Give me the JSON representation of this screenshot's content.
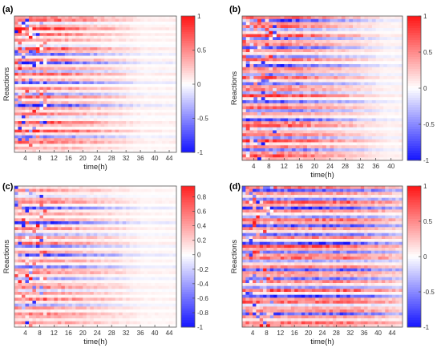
{
  "chart_data": [
    {
      "type": "heatmap",
      "panel_label": "(a)",
      "xlabel": "time(h)",
      "ylabel": "Reactions",
      "x_ticks": [
        4,
        8,
        12,
        16,
        20,
        24,
        28,
        32,
        36,
        40,
        44
      ],
      "xlim": [
        1,
        46
      ],
      "colorbar": {
        "ticks": [
          -1,
          -0.5,
          0,
          0.5,
          1
        ],
        "tick_labels": [
          "-1",
          "-0.5",
          "0",
          "0.5",
          "1"
        ],
        "range": [
          -1,
          1
        ]
      },
      "colormap": [
        "#1414ff",
        "#ffffff",
        "#ff1414"
      ],
      "rows": 48,
      "seed": 11,
      "density": 0.3,
      "fade_after": 10,
      "pattern": [
        0.6,
        0.8,
        -0.2,
        0.4,
        0.9,
        0.2,
        0.7,
        0.3,
        0.5,
        0.1,
        -0.3,
        0.9,
        0.4,
        -0.7,
        0.2,
        0.6,
        -0.9,
        0.3,
        0.5,
        -0.4,
        0.8,
        0.2,
        0.4,
        -0.8,
        0.1,
        0.6,
        0.3,
        -0.5,
        0.7,
        0.2,
        0.4,
        -0.9,
        0.5,
        0.3,
        0.6,
        -0.3,
        0.2,
        0.8,
        0.4,
        0.1,
        0.9,
        0.3,
        -0.6,
        0.5,
        0.7,
        0.2,
        0.4,
        0.3
      ]
    },
    {
      "type": "heatmap",
      "panel_label": "(b)",
      "xlabel": "time(h)",
      "ylabel": "Reactions",
      "x_ticks": [
        4,
        8,
        12,
        16,
        20,
        24,
        28,
        32,
        36,
        40
      ],
      "xlim": [
        1,
        43
      ],
      "colorbar": {
        "ticks": [
          -1,
          -0.5,
          0,
          0.5,
          1
        ],
        "tick_labels": [
          "-1",
          "-0.5",
          "0",
          "0.5",
          "1"
        ],
        "range": [
          -1,
          1
        ]
      },
      "colormap": [
        "#1414ff",
        "#ffffff",
        "#ff1414"
      ],
      "rows": 48,
      "seed": 23,
      "density": 0.3,
      "fade_after": 12,
      "pattern": [
        0.8,
        -0.9,
        0.5,
        0.7,
        -0.4,
        0.3,
        0.9,
        -0.7,
        0.4,
        0.6,
        -0.8,
        0.5,
        0.3,
        -0.6,
        0.7,
        0.2,
        -0.9,
        0.6,
        0.4,
        -0.5,
        0.8,
        0.3,
        -0.7,
        0.5,
        0.6,
        -0.4,
        0.9,
        0.2,
        -0.8,
        0.4,
        0.7,
        -0.6,
        0.5,
        0.3,
        -0.9,
        0.6,
        0.8,
        -0.3,
        0.4,
        0.7,
        -0.5,
        0.9,
        0.3,
        0.6,
        -0.7,
        0.5,
        0.8,
        0.4
      ]
    },
    {
      "type": "heatmap",
      "panel_label": "(c)",
      "xlabel": "time(h)",
      "ylabel": "Reactions",
      "x_ticks": [
        4,
        8,
        12,
        16,
        20,
        24,
        28,
        32,
        36,
        40,
        44
      ],
      "xlim": [
        1,
        46
      ],
      "colorbar": {
        "ticks": [
          -1,
          -0.8,
          -0.6,
          -0.4,
          -0.2,
          0,
          0.2,
          0.4,
          0.6,
          0.8
        ],
        "tick_labels": [
          "-1",
          "-0.8",
          "-0.6",
          "-0.4",
          "-0.2",
          "0",
          "0.2",
          "0.4",
          "0.6",
          "0.8"
        ],
        "range": [
          -1,
          0.95
        ]
      },
      "colormap": [
        "#1414ff",
        "#ffffff",
        "#ff1414"
      ],
      "rows": 48,
      "seed": 37,
      "density": 0.3,
      "fade_after": 10,
      "pattern": [
        0.3,
        0.5,
        0.2,
        -0.3,
        0.4,
        0.6,
        0.2,
        -0.8,
        0.3,
        0.5,
        0.1,
        0.4,
        -0.9,
        0.3,
        0.6,
        0.2,
        -0.4,
        0.5,
        0.3,
        0.7,
        -0.6,
        0.2,
        0.4,
        -0.9,
        0.3,
        0.5,
        0.2,
        -0.7,
        0.4,
        0.6,
        0.3,
        -0.5,
        0.2,
        0.4,
        0.6,
        -0.3,
        0.5,
        0.2,
        0.7,
        0.3,
        -0.4,
        0.5,
        0.2,
        0.6,
        0.4,
        0.3,
        0.5,
        0.2
      ]
    },
    {
      "type": "heatmap",
      "panel_label": "(d)",
      "xlabel": "time(h)",
      "ylabel": "Reactions",
      "x_ticks": [
        4,
        8,
        12,
        16,
        20,
        24,
        28,
        32,
        36,
        40,
        44
      ],
      "xlim": [
        1,
        47
      ],
      "colorbar": {
        "ticks": [
          -1,
          -0.5,
          0,
          0.5,
          1
        ],
        "tick_labels": [
          "-1",
          "-0.5",
          "0",
          "0.5",
          "1"
        ],
        "range": [
          -1,
          1
        ]
      },
      "colormap": [
        "#1414ff",
        "#ffffff",
        "#ff1414"
      ],
      "rows": 48,
      "seed": 53,
      "density": 0.3,
      "fade_after": 30,
      "pattern": [
        0.7,
        -0.8,
        0.5,
        0.3,
        -0.6,
        0.8,
        0.4,
        -0.9,
        0.6,
        0.2,
        -0.5,
        0.7,
        0.4,
        -0.8,
        0.5,
        0.3,
        -0.7,
        0.6,
        0.2,
        -0.9,
        0.8,
        0.4,
        -0.6,
        0.5,
        0.7,
        -0.4,
        0.3,
        0.6,
        -0.8,
        0.5,
        0.4,
        -0.7,
        0.6,
        0.3,
        -0.5,
        0.8,
        0.2,
        -0.9,
        0.5,
        0.7,
        -0.3,
        0.4,
        0.6,
        -0.8,
        0.5,
        0.3,
        0.7,
        0.4
      ]
    }
  ]
}
